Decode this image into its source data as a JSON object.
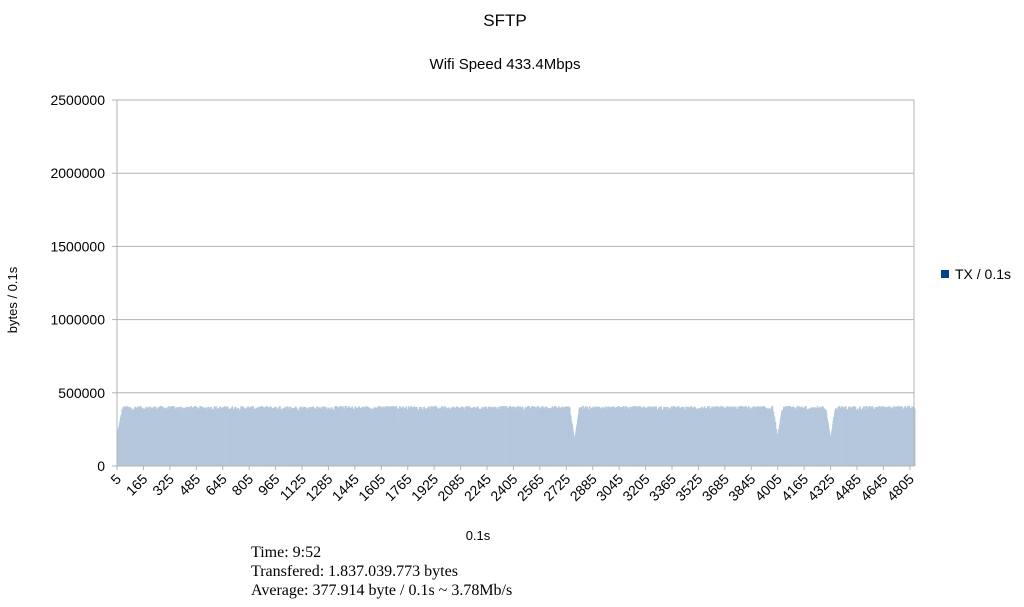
{
  "chart_data": {
    "type": "bar",
    "title": "SFTP",
    "subtitle": "Wifi Speed 433.4Mbps",
    "xlabel": "0.1s",
    "ylabel": "bytes / 0.1s",
    "ylim": [
      0,
      2500000
    ],
    "yticks": [
      "0",
      "500000",
      "1000000",
      "1500000",
      "2000000",
      "2500000"
    ],
    "xlim": [
      5,
      4830
    ],
    "xticks": [
      "5",
      "165",
      "325",
      "485",
      "645",
      "805",
      "965",
      "1125",
      "1285",
      "1445",
      "1605",
      "1765",
      "1925",
      "2085",
      "2245",
      "2405",
      "2565",
      "2725",
      "2885",
      "3045",
      "3205",
      "3365",
      "3525",
      "3685",
      "3845",
      "4005",
      "4165",
      "4325",
      "4485",
      "4645",
      "4805"
    ],
    "grid": true,
    "legend_position": "right",
    "series": [
      {
        "name": "TX / 0.1s",
        "color": "#004586",
        "bar_color": "#b4c7dc",
        "typical_value": 390000,
        "typical_range": [
          340000,
          410000
        ],
        "dips": [
          {
            "x": 5,
            "value": 230000
          },
          {
            "x": 2770,
            "value": 170000
          },
          {
            "x": 4000,
            "value": 200000
          },
          {
            "x": 4320,
            "value": 180000
          }
        ],
        "average": 377914
      }
    ]
  },
  "stats": {
    "time": "Time: 9:52",
    "transferred": "Transfered: 1.837.039.773 bytes",
    "average": "Average: 377.914 byte / 0.1s ~ 3.78Mb/s"
  }
}
